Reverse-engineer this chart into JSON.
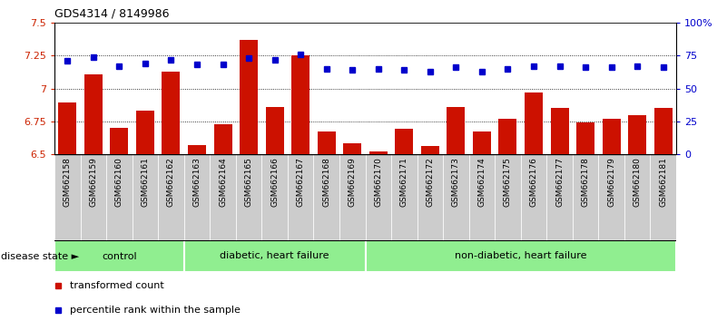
{
  "title": "GDS4314 / 8149986",
  "samples": [
    "GSM662158",
    "GSM662159",
    "GSM662160",
    "GSM662161",
    "GSM662162",
    "GSM662163",
    "GSM662164",
    "GSM662165",
    "GSM662166",
    "GSM662167",
    "GSM662168",
    "GSM662169",
    "GSM662170",
    "GSM662171",
    "GSM662172",
    "GSM662173",
    "GSM662174",
    "GSM662175",
    "GSM662176",
    "GSM662177",
    "GSM662178",
    "GSM662179",
    "GSM662180",
    "GSM662181"
  ],
  "bar_values": [
    6.89,
    7.11,
    6.7,
    6.83,
    7.13,
    6.57,
    6.73,
    7.37,
    6.86,
    7.25,
    6.67,
    6.58,
    6.52,
    6.69,
    6.56,
    6.86,
    6.67,
    6.77,
    6.97,
    6.85,
    6.74,
    6.77,
    6.8,
    6.85
  ],
  "percentile_values": [
    71,
    74,
    67,
    69,
    72,
    68,
    68,
    73,
    72,
    76,
    65,
    64,
    65,
    64,
    63,
    66,
    63,
    65,
    67,
    67,
    66,
    66,
    67,
    66
  ],
  "group_boundaries": [
    0,
    5,
    12,
    24
  ],
  "group_labels": [
    "control",
    "diabetic, heart failure",
    "non-diabetic, heart failure"
  ],
  "bar_color": "#cc1100",
  "dot_color": "#0000cc",
  "ylim_left": [
    6.5,
    7.5
  ],
  "yticks_left": [
    6.5,
    6.75,
    7.0,
    7.25,
    7.5
  ],
  "ytick_labels_left": [
    "6.5",
    "6.75",
    "7",
    "7.25",
    "7.5"
  ],
  "yticks_right_pct": [
    0,
    25,
    50,
    75,
    100
  ],
  "ytick_labels_right": [
    "0",
    "25",
    "50",
    "75",
    "100%"
  ],
  "grid_lines": [
    6.75,
    7.0,
    7.25
  ],
  "legend_labels": [
    "transformed count",
    "percentile rank within the sample"
  ],
  "legend_colors": [
    "#cc1100",
    "#0000cc"
  ],
  "group_color": "#90ee90",
  "xtick_bg_color": "#cccccc",
  "left_ax_color": "#cc2200",
  "right_ax_color": "#0000cc"
}
